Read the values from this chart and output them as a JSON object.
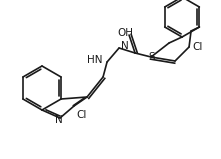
{
  "figsize": [
    2.21,
    1.59
  ],
  "dpi": 100,
  "bg_color": "#ffffff",
  "line_color": "#1a1a1a",
  "line_width": 1.2,
  "font_size": 7.5,
  "atoms": {
    "N_label": "N",
    "HN_label": "HN",
    "N2_label": "N",
    "Cl1_label": "Cl",
    "Cl2_label": "Cl",
    "S_label": "S",
    "OH_label": "OH"
  }
}
